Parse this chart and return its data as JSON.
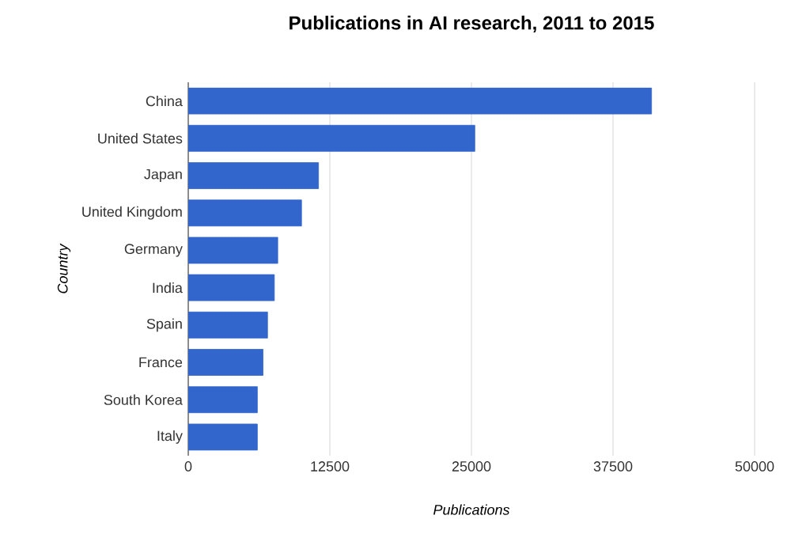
{
  "chart_data": {
    "type": "bar",
    "orientation": "horizontal",
    "title": "Publications in AI research, 2011 to 2015",
    "xlabel": "Publications",
    "ylabel": "Country",
    "categories": [
      "China",
      "United States",
      "Japan",
      "United Kingdom",
      "Germany",
      "India",
      "Spain",
      "France",
      "South Korea",
      "Italy"
    ],
    "values": [
      40900,
      25300,
      11500,
      10000,
      7900,
      7600,
      7000,
      6600,
      6100,
      6100
    ],
    "color": "#3366cc",
    "xlim": [
      0,
      50000
    ],
    "xticks": [
      0,
      12500,
      25000,
      37500,
      50000
    ],
    "grid": "x"
  }
}
